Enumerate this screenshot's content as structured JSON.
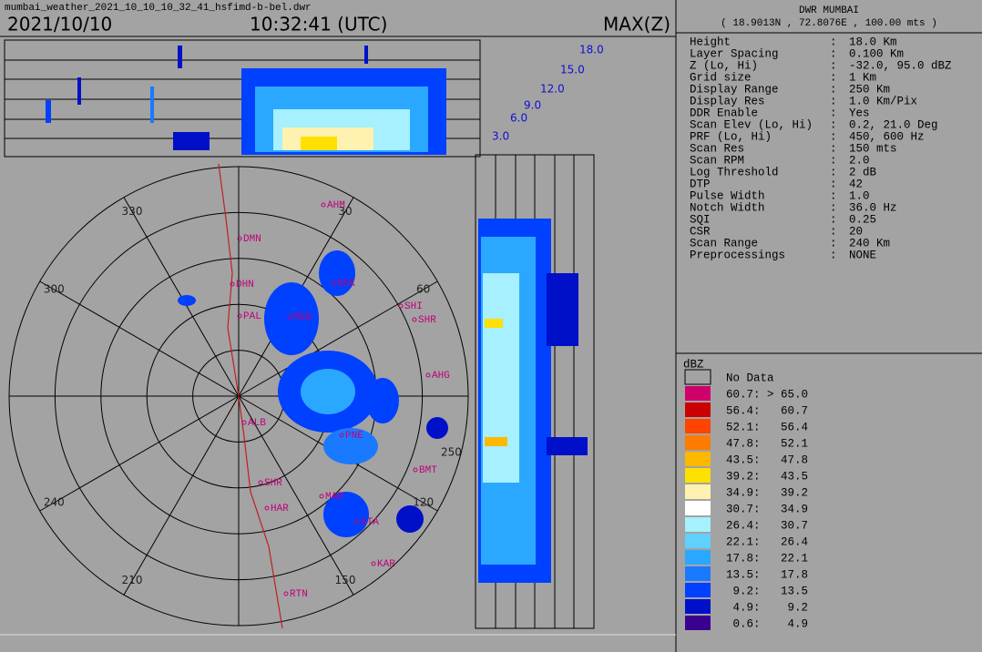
{
  "header": {
    "filename": "mumbai_weather_2021_10_10_10_32_41_hsfimd-b-bel.dwr",
    "date": "2021/10/10",
    "time": "10:32:41 (UTC)",
    "product": "MAX(Z)"
  },
  "station": {
    "name": "DWR MUMBAI",
    "location": "( 18.9013N , 72.8076E , 100.00 mts )"
  },
  "separator": ":",
  "parameters": [
    {
      "label": "Height",
      "value": "18.0 Km"
    },
    {
      "label": "Layer Spacing",
      "value": "0.100 Km"
    },
    {
      "label": "Z (Lo, Hi)",
      "value": "-32.0, 95.0 dBZ"
    },
    {
      "label": "Grid size",
      "value": "1 Km"
    },
    {
      "label": "Display Range",
      "value": "250 Km"
    },
    {
      "label": "Display Res",
      "value": "1.0 Km/Pix"
    },
    {
      "label": "DDR Enable",
      "value": "Yes"
    },
    {
      "label": "Scan Elev (Lo, Hi)",
      "value": "0.2, 21.0 Deg"
    },
    {
      "label": "PRF (Lo, Hi)",
      "value": "450, 600 Hz"
    },
    {
      "label": "Scan Res",
      "value": "150 mts"
    },
    {
      "label": "Scan RPM",
      "value": "2.0"
    },
    {
      "label": "Log Threshold",
      "value": "2 dB"
    },
    {
      "label": "DTP",
      "value": "42"
    },
    {
      "label": "Pulse Width",
      "value": "1.0"
    },
    {
      "label": "Notch Width",
      "value": "36.0 Hz"
    },
    {
      "label": "SQI",
      "value": "0.25"
    },
    {
      "label": "CSR",
      "value": "20"
    },
    {
      "label": "Scan Range",
      "value": "240 Km"
    },
    {
      "label": "Preprocessings",
      "value": "NONE"
    }
  ],
  "legend": {
    "unit": "dBZ",
    "no_data": "No Data",
    "entries": [
      {
        "range": "60.7: > 65.0",
        "color": "#d0006a"
      },
      {
        "range": "56.4:   60.7",
        "color": "#cc0000"
      },
      {
        "range": "52.1:   56.4",
        "color": "#ff4400"
      },
      {
        "range": "47.8:   52.1",
        "color": "#ff7b00"
      },
      {
        "range": "43.5:   47.8",
        "color": "#ffb800"
      },
      {
        "range": "39.2:   43.5",
        "color": "#ffe000"
      },
      {
        "range": "34.9:   39.2",
        "color": "#fff2b0"
      },
      {
        "range": "30.7:   34.9",
        "color": "#ffffff"
      },
      {
        "range": "26.4:   30.7",
        "color": "#a6f0ff"
      },
      {
        "range": "22.1:   26.4",
        "color": "#5fd0ff"
      },
      {
        "range": "17.8:   22.1",
        "color": "#2aa8ff"
      },
      {
        "range": "13.5:   17.8",
        "color": "#1a7aff"
      },
      {
        "range": " 9.2:   13.5",
        "color": "#0040ff"
      },
      {
        "range": " 4.9:    9.2",
        "color": "#0010c8"
      },
      {
        "range": " 0.6:    4.9",
        "color": "#3a0090"
      }
    ]
  },
  "height_labels": [
    "18.0",
    "15.0",
    "12.0",
    "9.0",
    "6.0",
    "3.0"
  ],
  "azimuth_labels": [
    "30",
    "60",
    "120",
    "150",
    "210",
    "240",
    "300",
    "330"
  ],
  "range_label": "250",
  "places": [
    "AHM",
    "DMN",
    "DHN",
    "NSK",
    "PAL",
    "MDD",
    "SHI",
    "SHR",
    "AHG",
    "PNE",
    "BMT",
    "SHR",
    "HAR",
    "MAR",
    "STA",
    "KAR",
    "RTN",
    "ALB"
  ]
}
